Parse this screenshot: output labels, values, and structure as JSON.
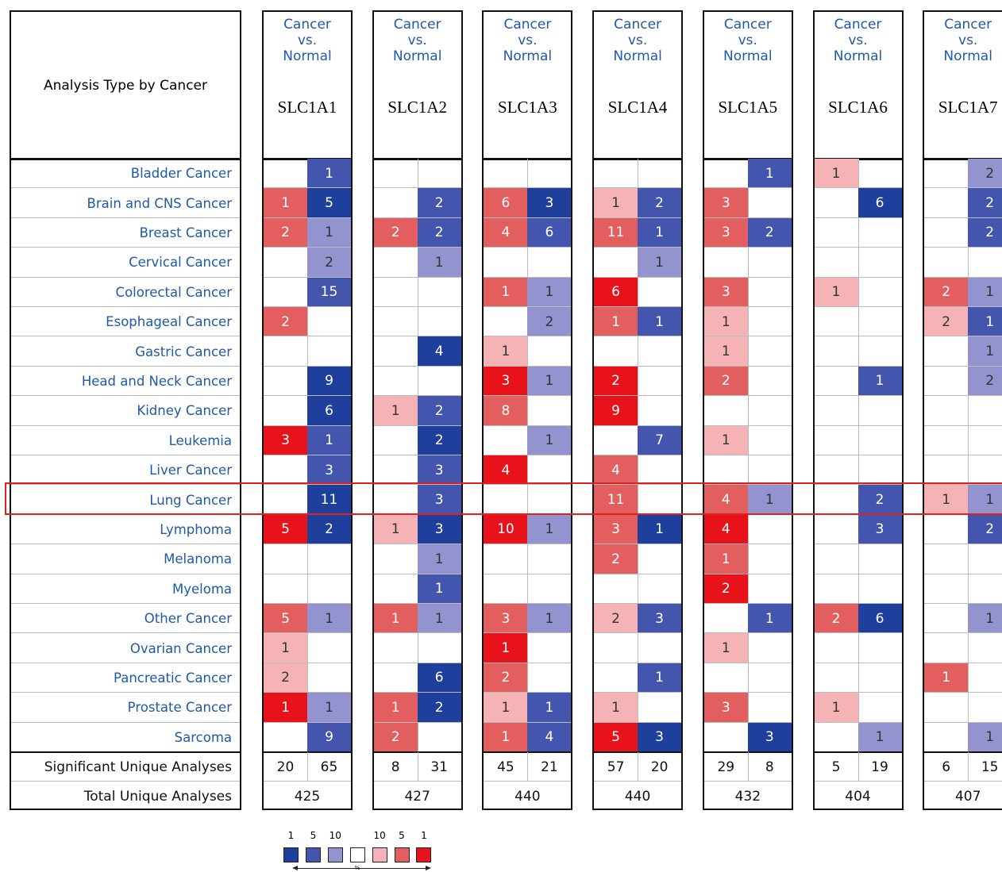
{
  "row_header": "Analysis Type by Cancer",
  "rows": [
    "Bladder Cancer",
    "Brain and CNS Cancer",
    "Breast Cancer",
    "Cervical Cancer",
    "Colorectal Cancer",
    "Esophageal Cancer",
    "Gastric Cancer",
    "Head and Neck Cancer",
    "Kidney Cancer",
    "Leukemia",
    "Liver Cancer",
    "Lung Cancer",
    "Lymphoma",
    "Melanoma",
    "Myeloma",
    "Other Cancer",
    "Ovarian Cancer",
    "Pancreatic Cancer",
    "Prostate Cancer",
    "Sarcoma"
  ],
  "footer_rows": [
    "Significant Unique Analyses",
    "Total Unique Analyses"
  ],
  "highlight": {
    "row": 11,
    "color": "#e0201c"
  },
  "genes": [
    {
      "comparison": [
        "Cancer",
        "vs.",
        "Normal"
      ],
      "name": "SLC1A1",
      "cells": [
        [
          null,
          {
            "value": 1,
            "color": "#4455ad"
          }
        ],
        [
          {
            "value": 1,
            "color": "#e35e5e"
          },
          {
            "value": 5,
            "color": "#1f3f9d"
          }
        ],
        [
          {
            "value": 2,
            "color": "#e35e5e"
          },
          {
            "value": 1,
            "color": "#9293cf"
          }
        ],
        [
          null,
          {
            "value": 2,
            "color": "#9293cf"
          }
        ],
        [
          null,
          {
            "value": 15,
            "color": "#4455ad"
          }
        ],
        [
          {
            "value": 2,
            "color": "#e35e5e"
          },
          null
        ],
        [
          null,
          null
        ],
        [
          null,
          {
            "value": 9,
            "color": "#1f3f9d"
          }
        ],
        [
          null,
          {
            "value": 6,
            "color": "#1f3f9d"
          }
        ],
        [
          {
            "value": 3,
            "color": "#e8131a"
          },
          {
            "value": 1,
            "color": "#4455ad"
          }
        ],
        [
          null,
          {
            "value": 3,
            "color": "#4455ad"
          }
        ],
        [
          null,
          {
            "value": 11,
            "color": "#1f3f9d"
          }
        ],
        [
          {
            "value": 5,
            "color": "#e8131a"
          },
          {
            "value": 2,
            "color": "#1f3f9d"
          }
        ],
        [
          null,
          null
        ],
        [
          null,
          null
        ],
        [
          {
            "value": 5,
            "color": "#e35e5e"
          },
          {
            "value": 1,
            "color": "#9293cf"
          }
        ],
        [
          {
            "value": 1,
            "color": "#f5b3b5"
          },
          null
        ],
        [
          {
            "value": 2,
            "color": "#f5b3b5"
          },
          null
        ],
        [
          {
            "value": 1,
            "color": "#e8131a"
          },
          {
            "value": 1,
            "color": "#9293cf"
          }
        ],
        [
          null,
          {
            "value": 9,
            "color": "#4455ad"
          }
        ]
      ],
      "significant": [
        20,
        65
      ],
      "total": 425
    },
    {
      "comparison": [
        "Cancer",
        "vs.",
        "Normal"
      ],
      "name": "SLC1A2",
      "cells": [
        [
          null,
          null
        ],
        [
          null,
          {
            "value": 2,
            "color": "#4455ad"
          }
        ],
        [
          {
            "value": 2,
            "color": "#e35e5e"
          },
          {
            "value": 2,
            "color": "#4455ad"
          }
        ],
        [
          null,
          {
            "value": 1,
            "color": "#9293cf"
          }
        ],
        [
          null,
          null
        ],
        [
          null,
          null
        ],
        [
          null,
          {
            "value": 4,
            "color": "#1f3f9d"
          }
        ],
        [
          null,
          null
        ],
        [
          {
            "value": 1,
            "color": "#f5b3b5"
          },
          {
            "value": 2,
            "color": "#4455ad"
          }
        ],
        [
          null,
          {
            "value": 2,
            "color": "#1f3f9d"
          }
        ],
        [
          null,
          {
            "value": 3,
            "color": "#4455ad"
          }
        ],
        [
          null,
          {
            "value": 3,
            "color": "#4455ad"
          }
        ],
        [
          {
            "value": 1,
            "color": "#f5b3b5"
          },
          {
            "value": 3,
            "color": "#1f3f9d"
          }
        ],
        [
          null,
          {
            "value": 1,
            "color": "#9293cf"
          }
        ],
        [
          null,
          {
            "value": 1,
            "color": "#4455ad"
          }
        ],
        [
          {
            "value": 1,
            "color": "#e35e5e"
          },
          {
            "value": 1,
            "color": "#9293cf"
          }
        ],
        [
          null,
          null
        ],
        [
          null,
          {
            "value": 6,
            "color": "#1f3f9d"
          }
        ],
        [
          {
            "value": 1,
            "color": "#e35e5e"
          },
          {
            "value": 2,
            "color": "#1f3f9d"
          }
        ],
        [
          {
            "value": 2,
            "color": "#e35e5e"
          },
          null
        ]
      ],
      "significant": [
        8,
        31
      ],
      "total": 427
    },
    {
      "comparison": [
        "Cancer",
        "vs.",
        "Normal"
      ],
      "name": "SLC1A3",
      "cells": [
        [
          null,
          null
        ],
        [
          {
            "value": 6,
            "color": "#e35e5e"
          },
          {
            "value": 3,
            "color": "#1f3f9d"
          }
        ],
        [
          {
            "value": 4,
            "color": "#e35e5e"
          },
          {
            "value": 6,
            "color": "#4455ad"
          }
        ],
        [
          null,
          null
        ],
        [
          {
            "value": 1,
            "color": "#e35e5e"
          },
          {
            "value": 1,
            "color": "#9293cf"
          }
        ],
        [
          null,
          {
            "value": 2,
            "color": "#9293cf"
          }
        ],
        [
          {
            "value": 1,
            "color": "#f5b3b5"
          },
          null
        ],
        [
          {
            "value": 3,
            "color": "#e8131a"
          },
          {
            "value": 1,
            "color": "#9293cf"
          }
        ],
        [
          {
            "value": 8,
            "color": "#e35e5e"
          },
          null
        ],
        [
          null,
          {
            "value": 1,
            "color": "#9293cf"
          }
        ],
        [
          {
            "value": 4,
            "color": "#e8131a"
          },
          null
        ],
        [
          null,
          null
        ],
        [
          {
            "value": 10,
            "color": "#e8131a"
          },
          {
            "value": 1,
            "color": "#9293cf"
          }
        ],
        [
          null,
          null
        ],
        [
          null,
          null
        ],
        [
          {
            "value": 3,
            "color": "#e35e5e"
          },
          {
            "value": 1,
            "color": "#9293cf"
          }
        ],
        [
          {
            "value": 1,
            "color": "#e8131a"
          },
          null
        ],
        [
          {
            "value": 2,
            "color": "#e35e5e"
          },
          null
        ],
        [
          {
            "value": 1,
            "color": "#f5b3b5"
          },
          {
            "value": 1,
            "color": "#4455ad"
          }
        ],
        [
          {
            "value": 1,
            "color": "#e35e5e"
          },
          {
            "value": 4,
            "color": "#4455ad"
          }
        ]
      ],
      "significant": [
        45,
        21
      ],
      "total": 440
    },
    {
      "comparison": [
        "Cancer",
        "vs.",
        "Normal"
      ],
      "name": "SLC1A4",
      "cells": [
        [
          null,
          null
        ],
        [
          {
            "value": 1,
            "color": "#f5b3b5"
          },
          {
            "value": 2,
            "color": "#4455ad"
          }
        ],
        [
          {
            "value": 11,
            "color": "#e35e5e"
          },
          {
            "value": 1,
            "color": "#4455ad"
          }
        ],
        [
          null,
          {
            "value": 1,
            "color": "#9293cf"
          }
        ],
        [
          {
            "value": 6,
            "color": "#e8131a"
          },
          null
        ],
        [
          {
            "value": 1,
            "color": "#e35e5e"
          },
          {
            "value": 1,
            "color": "#4455ad"
          }
        ],
        [
          null,
          null
        ],
        [
          {
            "value": 2,
            "color": "#e8131a"
          },
          null
        ],
        [
          {
            "value": 9,
            "color": "#e8131a"
          },
          null
        ],
        [
          null,
          {
            "value": 7,
            "color": "#4455ad"
          }
        ],
        [
          {
            "value": 4,
            "color": "#e35e5e"
          },
          null
        ],
        [
          {
            "value": 11,
            "color": "#e35e5e"
          },
          null
        ],
        [
          {
            "value": 3,
            "color": "#e35e5e"
          },
          {
            "value": 1,
            "color": "#1f3f9d"
          }
        ],
        [
          {
            "value": 2,
            "color": "#e35e5e"
          },
          null
        ],
        [
          null,
          null
        ],
        [
          {
            "value": 2,
            "color": "#f5b3b5"
          },
          {
            "value": 3,
            "color": "#4455ad"
          }
        ],
        [
          null,
          null
        ],
        [
          null,
          {
            "value": 1,
            "color": "#4455ad"
          }
        ],
        [
          {
            "value": 1,
            "color": "#f5b3b5"
          },
          null
        ],
        [
          {
            "value": 5,
            "color": "#e8131a"
          },
          {
            "value": 3,
            "color": "#1f3f9d"
          }
        ]
      ],
      "significant": [
        57,
        20
      ],
      "total": 440
    },
    {
      "comparison": [
        "Cancer",
        "vs.",
        "Normal"
      ],
      "name": "SLC1A5",
      "cells": [
        [
          null,
          {
            "value": 1,
            "color": "#4455ad"
          }
        ],
        [
          {
            "value": 3,
            "color": "#e35e5e"
          },
          null
        ],
        [
          {
            "value": 3,
            "color": "#e35e5e"
          },
          {
            "value": 2,
            "color": "#4455ad"
          }
        ],
        [
          null,
          null
        ],
        [
          {
            "value": 3,
            "color": "#e35e5e"
          },
          null
        ],
        [
          {
            "value": 1,
            "color": "#f5b3b5"
          },
          null
        ],
        [
          {
            "value": 1,
            "color": "#f5b3b5"
          },
          null
        ],
        [
          {
            "value": 2,
            "color": "#e35e5e"
          },
          null
        ],
        [
          null,
          null
        ],
        [
          {
            "value": 1,
            "color": "#f5b3b5"
          },
          null
        ],
        [
          null,
          null
        ],
        [
          {
            "value": 4,
            "color": "#e35e5e"
          },
          {
            "value": 1,
            "color": "#9293cf"
          }
        ],
        [
          {
            "value": 4,
            "color": "#e8131a"
          },
          null
        ],
        [
          {
            "value": 1,
            "color": "#e35e5e"
          },
          null
        ],
        [
          {
            "value": 2,
            "color": "#e8131a"
          },
          null
        ],
        [
          null,
          {
            "value": 1,
            "color": "#4455ad"
          }
        ],
        [
          {
            "value": 1,
            "color": "#f5b3b5"
          },
          null
        ],
        [
          null,
          null
        ],
        [
          {
            "value": 3,
            "color": "#e35e5e"
          },
          null
        ],
        [
          null,
          {
            "value": 3,
            "color": "#1f3f9d"
          }
        ]
      ],
      "significant": [
        29,
        8
      ],
      "total": 432
    },
    {
      "comparison": [
        "Cancer",
        "vs.",
        "Normal"
      ],
      "name": "SLC1A6",
      "cells": [
        [
          {
            "value": 1,
            "color": "#f5b3b5"
          },
          null
        ],
        [
          null,
          {
            "value": 6,
            "color": "#1f3f9d"
          }
        ],
        [
          null,
          null
        ],
        [
          null,
          null
        ],
        [
          {
            "value": 1,
            "color": "#f5b3b5"
          },
          null
        ],
        [
          null,
          null
        ],
        [
          null,
          null
        ],
        [
          null,
          {
            "value": 1,
            "color": "#4455ad"
          }
        ],
        [
          null,
          null
        ],
        [
          null,
          null
        ],
        [
          null,
          null
        ],
        [
          null,
          {
            "value": 2,
            "color": "#4455ad"
          }
        ],
        [
          null,
          {
            "value": 3,
            "color": "#4455ad"
          }
        ],
        [
          null,
          null
        ],
        [
          null,
          null
        ],
        [
          {
            "value": 2,
            "color": "#e35e5e"
          },
          {
            "value": 6,
            "color": "#1f3f9d"
          }
        ],
        [
          null,
          null
        ],
        [
          null,
          null
        ],
        [
          {
            "value": 1,
            "color": "#f5b3b5"
          },
          null
        ],
        [
          null,
          {
            "value": 1,
            "color": "#9293cf"
          }
        ]
      ],
      "significant": [
        5,
        19
      ],
      "total": 404
    },
    {
      "comparison": [
        "Cancer",
        "vs.",
        "Normal"
      ],
      "name": "SLC1A7",
      "cells": [
        [
          null,
          {
            "value": 2,
            "color": "#9293cf"
          }
        ],
        [
          null,
          {
            "value": 2,
            "color": "#4455ad"
          }
        ],
        [
          null,
          {
            "value": 2,
            "color": "#4455ad"
          }
        ],
        [
          null,
          null
        ],
        [
          {
            "value": 2,
            "color": "#e35e5e"
          },
          {
            "value": 1,
            "color": "#9293cf"
          }
        ],
        [
          {
            "value": 2,
            "color": "#f5b3b5"
          },
          {
            "value": 1,
            "color": "#4455ad"
          }
        ],
        [
          null,
          {
            "value": 1,
            "color": "#9293cf"
          }
        ],
        [
          null,
          {
            "value": 2,
            "color": "#9293cf"
          }
        ],
        [
          null,
          null
        ],
        [
          null,
          null
        ],
        [
          null,
          null
        ],
        [
          {
            "value": 1,
            "color": "#f5b3b5"
          },
          {
            "value": 1,
            "color": "#9293cf"
          }
        ],
        [
          null,
          {
            "value": 2,
            "color": "#4455ad"
          }
        ],
        [
          null,
          null
        ],
        [
          null,
          null
        ],
        [
          null,
          {
            "value": 1,
            "color": "#9293cf"
          }
        ],
        [
          null,
          null
        ],
        [
          {
            "value": 1,
            "color": "#e35e5e"
          },
          null
        ],
        [
          null,
          null
        ],
        [
          null,
          {
            "value": 1,
            "color": "#9293cf"
          }
        ]
      ],
      "significant": [
        6,
        15
      ],
      "total": 407
    }
  ],
  "legend": {
    "down": [
      {
        "label": "1",
        "color": "#1f3f9d"
      },
      {
        "label": "5",
        "color": "#4455ad"
      },
      {
        "label": "10",
        "color": "#9293cf"
      }
    ],
    "neutral_color": "#ffffff",
    "up": [
      {
        "label": "10",
        "color": "#f5b3b5"
      },
      {
        "label": "5",
        "color": "#e35e5e"
      },
      {
        "label": "1",
        "color": "#e8131a"
      }
    ],
    "unit": "%"
  }
}
